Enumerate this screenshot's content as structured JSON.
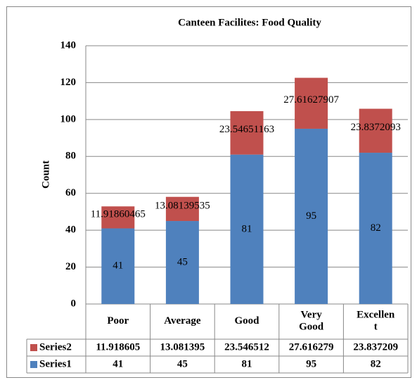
{
  "chart_data": {
    "type": "bar",
    "stacked": true,
    "title": "Canteen Facilites: Food Quality",
    "y_label": "Count",
    "categories": [
      "Poor",
      "Average",
      "Good",
      "Very Good",
      "Excellent"
    ],
    "series": [
      {
        "name": "Series1",
        "color": "#4f81bd",
        "values": [
          41,
          45,
          81,
          95,
          82
        ]
      },
      {
        "name": "Series2",
        "color": "#c0504d",
        "values": [
          11.91860465,
          13.08139535,
          23.54651163,
          27.61627907,
          23.8372093
        ],
        "value_labels": [
          "11.918605",
          "13.081395",
          "23.546512",
          "27.616279",
          "23.837209"
        ]
      }
    ],
    "ylim": [
      0,
      140
    ],
    "yticks": [
      0,
      20,
      40,
      60,
      80,
      100,
      120,
      140
    ],
    "grid": true
  }
}
